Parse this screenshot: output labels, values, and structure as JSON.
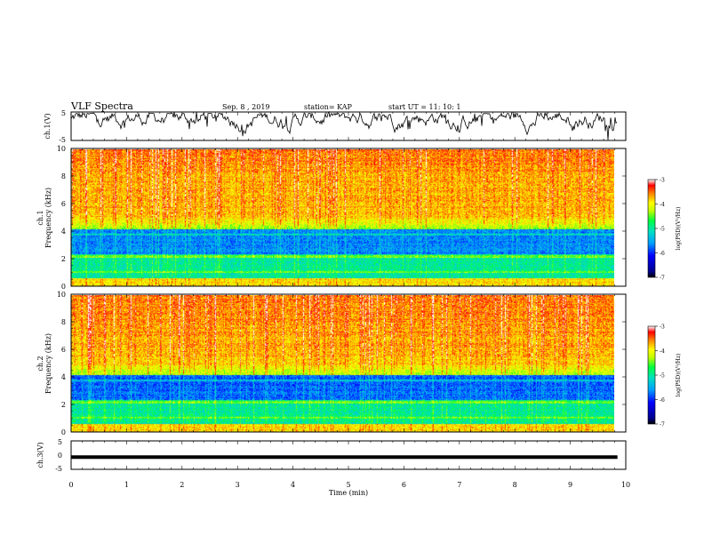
{
  "header": {
    "title": "VLF Spectra",
    "date": "Sep. 8 , 2019",
    "station": "station= KAP",
    "start": "start UT =   11: 10: 1"
  },
  "chart_data": [
    {
      "type": "line",
      "name": "ch1-waveform",
      "ylabel": "ch.1(V)",
      "ylim": [
        -5,
        5
      ],
      "yticks": [
        "5",
        "-5"
      ],
      "xlim": [
        0,
        10
      ]
    },
    {
      "type": "heatmap",
      "name": "ch1-spectrogram",
      "ylabel_line1": "ch.1",
      "ylabel_line2": "Frequency (kHz)",
      "ylim": [
        0,
        10
      ],
      "yticks": [
        "0",
        "2",
        "4",
        "6",
        "8",
        "10"
      ],
      "xlim": [
        0,
        10
      ],
      "colorbar": {
        "label": "log(PSD)(V²/Hz)",
        "range": [
          -7,
          -3
        ],
        "ticks": [
          "-3",
          "-4",
          "-5",
          "-6",
          "-7"
        ]
      }
    },
    {
      "type": "heatmap",
      "name": "ch2-spectrogram",
      "ylabel_line1": "ch.2",
      "ylabel_line2": "Frequency (kHz)",
      "ylim": [
        0,
        10
      ],
      "yticks": [
        "0",
        "2",
        "4",
        "6",
        "8",
        "10"
      ],
      "xlim": [
        0,
        10
      ],
      "colorbar": {
        "label": "log(PSD)(V²/Hz)",
        "range": [
          -7,
          -3
        ],
        "ticks": [
          "-3",
          "-4",
          "-5",
          "-6",
          "-7"
        ]
      }
    },
    {
      "type": "line",
      "name": "ch3-waveform",
      "ylabel": "ch.3(V)",
      "ylim": [
        -5,
        5
      ],
      "yticks": [
        "5",
        "0",
        "-5"
      ],
      "x": [
        0,
        9.85
      ],
      "y": [
        -0.7,
        -0.7
      ],
      "xlim": [
        0,
        10
      ],
      "xlabel": "Time (min)",
      "xticks": [
        "0",
        "1",
        "2",
        "3",
        "4",
        "5",
        "6",
        "7",
        "8",
        "9",
        "10"
      ]
    }
  ]
}
